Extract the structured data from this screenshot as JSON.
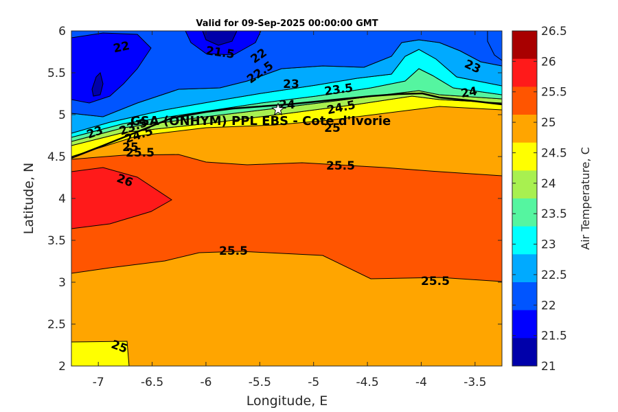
{
  "title": "Valid for 09-Sep-2025 00:00:00 GMT",
  "x_axis": {
    "label": "Longitude, E",
    "ticks": [
      "-7",
      "-6.5",
      "-6",
      "-5.5",
      "-5",
      "-4.5",
      "-4",
      "-3.5"
    ]
  },
  "y_axis": {
    "label": "Latitude, N",
    "ticks": [
      "6",
      "5.5",
      "5",
      "4.5",
      "4",
      "3.5",
      "3",
      "2.5",
      "2"
    ]
  },
  "colorbar": {
    "label": "Air Temperature, C",
    "ticks": [
      "26.5",
      "26",
      "25.5",
      "25",
      "24.5",
      "24",
      "23.5",
      "23",
      "22.5",
      "22",
      "21.5",
      "21"
    ],
    "colors": [
      "#a80000",
      "#ff1a1a",
      "#ff5500",
      "#ffa500",
      "#ffff00",
      "#a8f050",
      "#55f5a0",
      "#00ffff",
      "#00aaff",
      "#0055ff",
      "#0000ff",
      "#0000aa"
    ]
  },
  "site": {
    "label": "GSA (ONHYM) PPL EBS - Cote d'Ivorie",
    "marker": "star-icon"
  },
  "contour_labels": [
    {
      "text": "22"
    },
    {
      "text": "21.5"
    },
    {
      "text": "22"
    },
    {
      "text": "22.5"
    },
    {
      "text": "23"
    },
    {
      "text": "23.5"
    },
    {
      "text": "23"
    },
    {
      "text": "24"
    },
    {
      "text": "24"
    },
    {
      "text": "24.5"
    },
    {
      "text": "25"
    },
    {
      "text": "23"
    },
    {
      "text": "23.5"
    },
    {
      "text": "24.5"
    },
    {
      "text": "25"
    },
    {
      "text": "25.5"
    },
    {
      "text": "26"
    },
    {
      "text": "25.5"
    },
    {
      "text": "25.5"
    },
    {
      "text": "25.5"
    },
    {
      "text": "25"
    }
  ],
  "chart_data": {
    "type": "heatmap",
    "variable": "Air Temperature, C",
    "xlim": [
      -7.25,
      -3.25
    ],
    "ylim": [
      2,
      6
    ],
    "levels": [
      21,
      21.5,
      22,
      22.5,
      23,
      23.5,
      24,
      24.5,
      25,
      25.5,
      26,
      26.5
    ],
    "site_location": {
      "lon": -5.33,
      "lat": 5.06
    }
  }
}
